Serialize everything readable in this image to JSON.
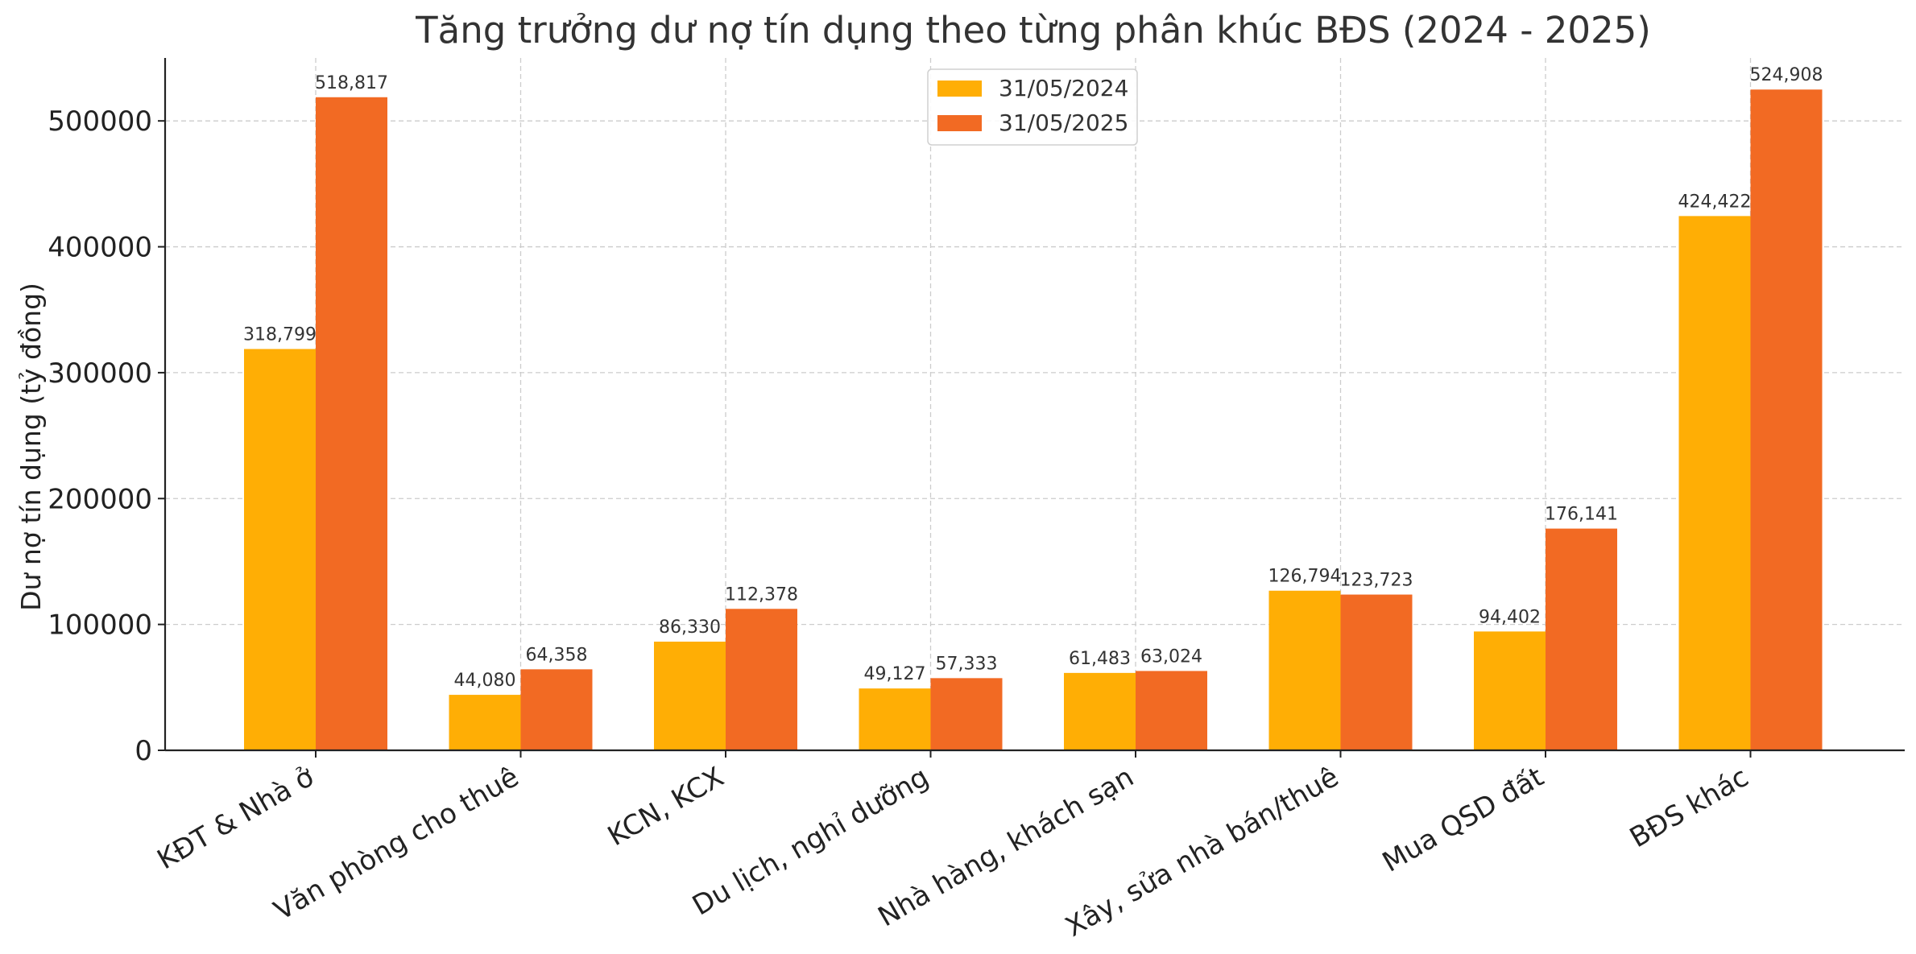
{
  "chart_data": {
    "type": "bar",
    "title": "Tăng trưởng dư nợ tín dụng theo từng phân khúc BĐS (2024 - 2025)",
    "xlabel": "",
    "ylabel": "Dư nợ tín dụng (tỷ đồng)",
    "ylim": [
      0,
      550000
    ],
    "yticks": [
      0,
      100000,
      200000,
      300000,
      400000,
      500000
    ],
    "ytick_labels": [
      "0",
      "100000",
      "200000",
      "300000",
      "400000",
      "500000"
    ],
    "grid": true,
    "legend_position": "top-center",
    "categories": [
      "KĐT & Nhà ở",
      "Văn phòng cho thuê",
      "KCN, KCX",
      "Du lịch, nghỉ dưỡng",
      "Nhà hàng, khách sạn",
      "Xây, sửa nhà bán/thuê",
      "Mua QSD đất",
      "BĐS khác"
    ],
    "series": [
      {
        "name": "31/05/2024",
        "color": "#FFAE05",
        "values": [
          318799,
          44080,
          86330,
          49127,
          61483,
          126794,
          94402,
          424422
        ],
        "labels": [
          "318,799",
          "44,080",
          "86,330",
          "49,127",
          "61,483",
          "126,794",
          "94,402",
          "424,422"
        ]
      },
      {
        "name": "31/05/2025",
        "color": "#F26A23",
        "values": [
          518817,
          64358,
          112378,
          57333,
          63024,
          123723,
          176141,
          524908
        ],
        "labels": [
          "518,817",
          "64,358",
          "112,378",
          "57,333",
          "63,024",
          "123,723",
          "176,141",
          "524,908"
        ]
      }
    ]
  }
}
